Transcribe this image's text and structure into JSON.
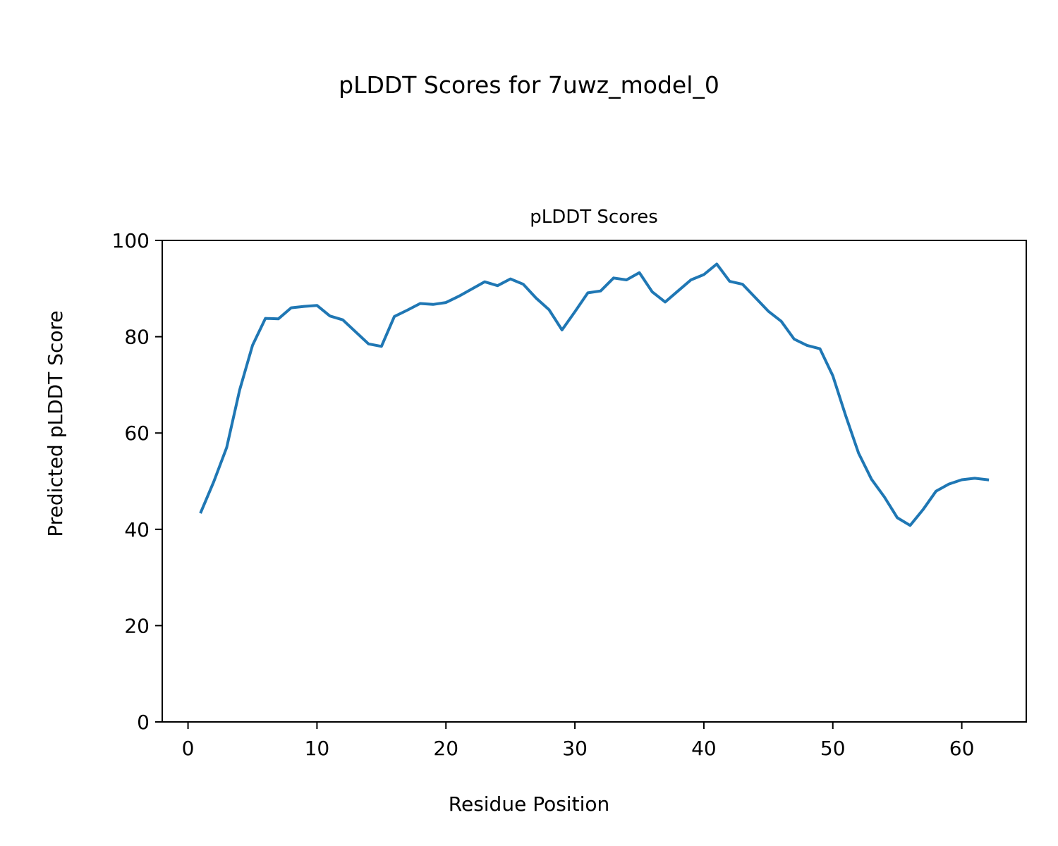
{
  "figure_title": "pLDDT Scores for 7uwz_model_0",
  "chart_data": {
    "type": "line",
    "title": "pLDDT Scores",
    "xlabel": "Residue Position",
    "ylabel": "Predicted pLDDT Score",
    "xlim": [
      -2,
      65
    ],
    "ylim": [
      0,
      100
    ],
    "xticks": [
      0,
      10,
      20,
      30,
      40,
      50,
      60
    ],
    "yticks": [
      0,
      20,
      40,
      60,
      80,
      100
    ],
    "grid": false,
    "line_color": "#1f77b4",
    "series": [
      {
        "x": [
          1,
          2,
          3,
          4,
          5,
          6,
          7,
          8,
          9,
          10,
          11,
          12,
          13,
          14,
          15,
          16,
          17,
          18,
          19,
          20,
          21,
          22,
          23,
          24,
          25,
          26,
          27,
          28,
          29,
          30,
          31,
          32,
          33,
          34,
          35,
          36,
          37,
          38,
          39,
          40,
          41,
          42,
          43,
          44,
          45,
          46,
          47,
          48,
          49,
          50,
          51,
          52,
          53,
          54,
          55,
          56,
          57,
          58,
          59,
          60,
          61,
          62
        ],
        "values": [
          43.6,
          49.9,
          57.0,
          68.9,
          78.2,
          83.8,
          83.7,
          86.0,
          86.3,
          86.5,
          84.3,
          83.5,
          81.0,
          78.5,
          78.0,
          84.2,
          85.5,
          86.9,
          86.7,
          87.1,
          88.4,
          89.9,
          91.4,
          90.6,
          92.0,
          90.9,
          88.0,
          85.6,
          81.4,
          85.2,
          89.1,
          89.5,
          92.2,
          91.8,
          93.3,
          89.3,
          87.2,
          89.5,
          91.8,
          92.9,
          95.1,
          91.5,
          90.9,
          88.1,
          85.3,
          83.2,
          79.5,
          78.2,
          77.5,
          71.9,
          63.6,
          55.8,
          50.4,
          46.7,
          42.4,
          40.8,
          44.1,
          47.9,
          49.4,
          50.3,
          50.6,
          50.3
        ]
      }
    ]
  }
}
